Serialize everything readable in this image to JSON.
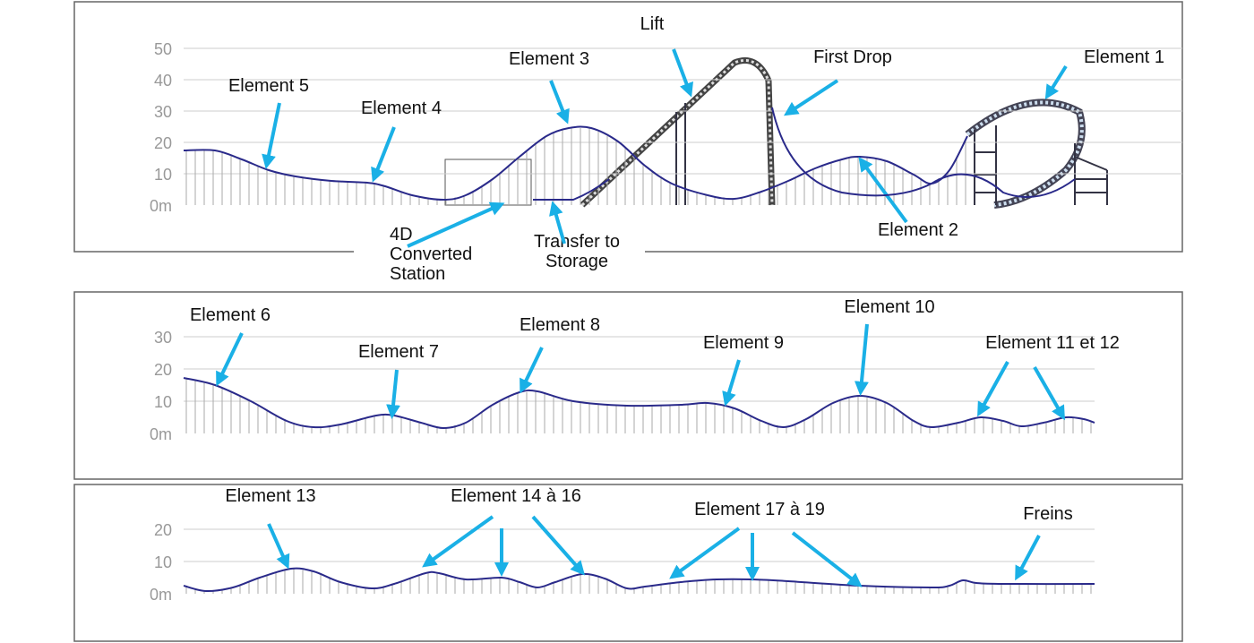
{
  "panels": [
    {
      "axis_labels": [
        "50",
        "40",
        "30",
        "20",
        "10",
        "0m"
      ],
      "labels": [
        [
          "Lift"
        ],
        [
          "First Drop"
        ],
        [
          "Element 1"
        ],
        [
          "Element 3"
        ],
        [
          "Element 5"
        ],
        [
          "Element 4"
        ],
        [
          "4D",
          "Converted",
          "Station"
        ],
        [
          "Transfer to",
          "Storage"
        ],
        [
          "Element 2"
        ]
      ]
    },
    {
      "axis_labels": [
        "30",
        "20",
        "10",
        "0m"
      ],
      "labels": [
        [
          "Element 6"
        ],
        [
          "Element 7"
        ],
        [
          "Element 8"
        ],
        [
          "Element 9"
        ],
        [
          "Element 10"
        ],
        [
          "Element 11 et 12"
        ]
      ]
    },
    {
      "axis_labels": [
        "20",
        "10",
        "0m"
      ],
      "labels": [
        [
          "Element 13"
        ],
        [
          "Element 14 à 16"
        ],
        [
          "Element 17 à 19"
        ],
        [
          "Freins"
        ]
      ]
    }
  ]
}
